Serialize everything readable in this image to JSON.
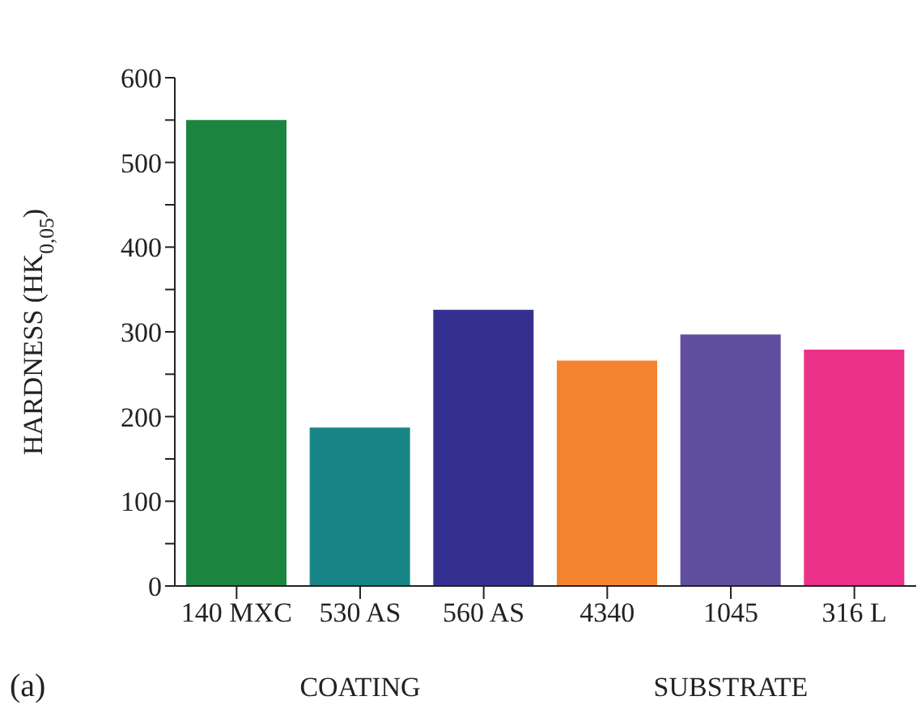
{
  "chart_data": {
    "type": "bar",
    "ylabel": "HARDNESS (HK$_{0,05}$)",
    "categories": [
      "140 MXC",
      "530 AS",
      "560 AS",
      "4340",
      "1045",
      "316 L"
    ],
    "values": [
      550,
      187,
      326,
      266,
      297,
      279
    ],
    "colors": [
      "#1c8641",
      "#188686",
      "#353090",
      "#f4832e",
      "#5f4f9e",
      "#ec318a"
    ],
    "ylim": [
      0,
      600
    ],
    "yticks": [
      0,
      {
        "value": 50,
        "label": null
      },
      100,
      {
        "value": 150,
        "label": null
      },
      200,
      {
        "value": 250,
        "label": null
      },
      300,
      {
        "value": 350,
        "label": null
      },
      400,
      {
        "value": 450,
        "label": null
      },
      500,
      {
        "value": 550,
        "label": null
      },
      600
    ],
    "grid": false,
    "annotations": [
      "(a)",
      "COATING",
      "SUBSTRATE"
    ]
  }
}
